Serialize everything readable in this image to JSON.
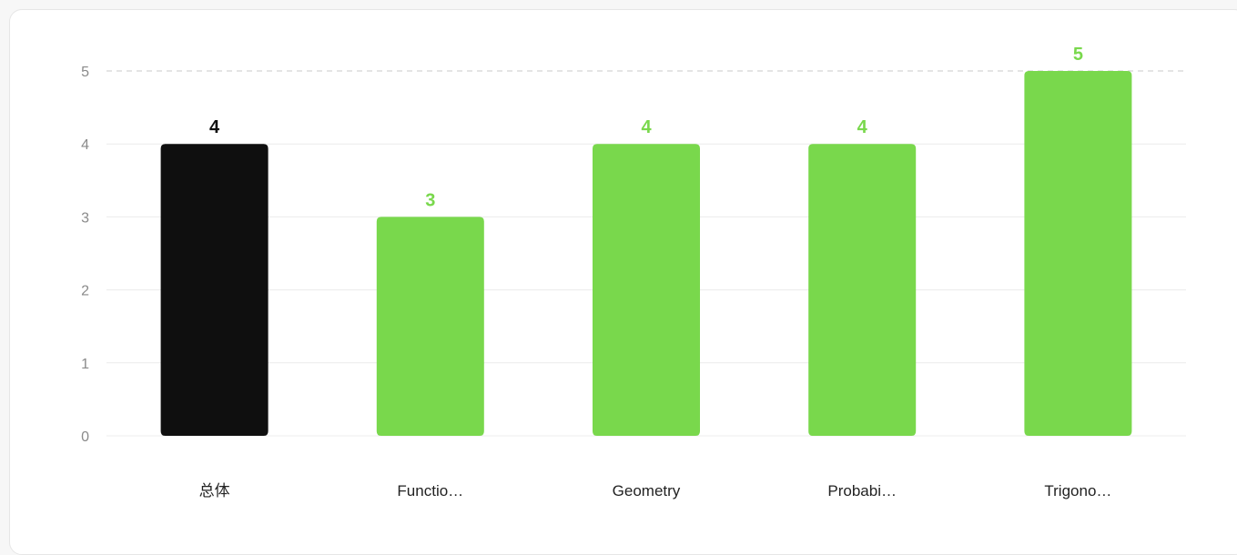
{
  "chart_data": {
    "type": "bar",
    "categories": [
      "总体",
      "Functio…",
      "Geometry",
      "Probabi…",
      "Trigono…"
    ],
    "values": [
      4,
      3,
      4,
      4,
      5
    ],
    "value_labels": [
      "4",
      "3",
      "4",
      "4",
      "5"
    ],
    "title": "",
    "xlabel": "",
    "ylabel": "",
    "ylim": [
      0,
      5
    ],
    "yticks": [
      0,
      1,
      2,
      3,
      4,
      5
    ],
    "ytick_labels": [
      "0",
      "1",
      "2",
      "3",
      "4",
      "5"
    ],
    "grid": true,
    "max_line": "dashed",
    "colors": {
      "overall_bar": "#0f0f0f",
      "subject_bar": "#79d84c",
      "overall_label": "#0f0f0f",
      "subject_label": "#79d84c",
      "gridline": "#ececec",
      "max_gridline": "#c8c8c8"
    }
  }
}
